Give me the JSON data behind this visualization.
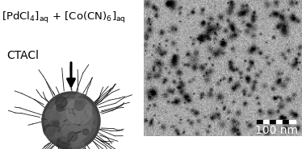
{
  "background_color": "#ffffff",
  "title_fontsize": 9.5,
  "label_fontsize": 10,
  "tem_bg_gray": 0.65,
  "num_dark_spots": 350,
  "spot_size_mean": 1.8,
  "spot_size_std": 0.8,
  "spot_darkness_min": 0.25,
  "spot_darkness_max": 0.55,
  "scale_bar_label": "100 nm",
  "scale_bar_color": "white",
  "scale_label_color": "white",
  "scale_label_fontsize": 10
}
